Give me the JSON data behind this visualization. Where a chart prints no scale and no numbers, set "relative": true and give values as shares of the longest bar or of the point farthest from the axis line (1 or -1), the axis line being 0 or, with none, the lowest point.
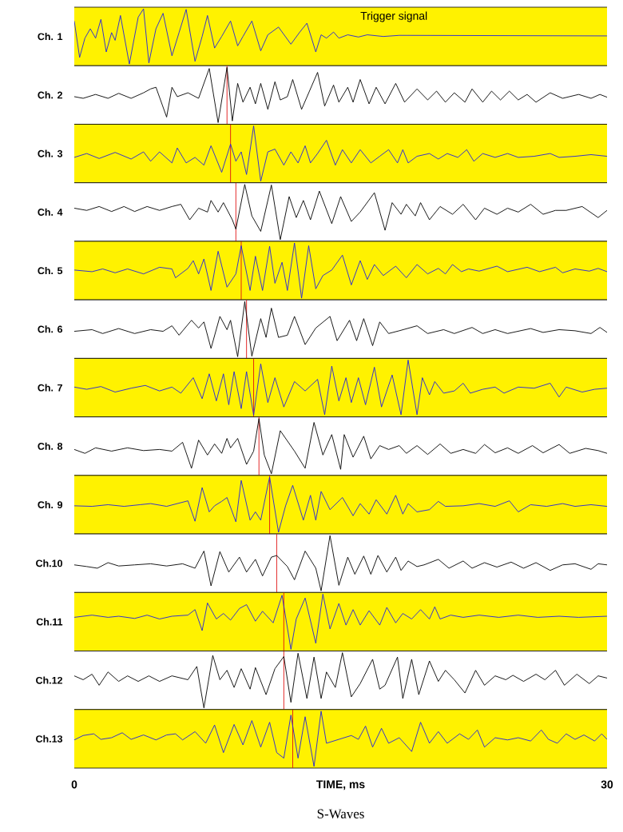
{
  "chart_data": [
    {
      "type": "line",
      "relative": true,
      "ylabel": "Ch. 1",
      "color": "#2020e0",
      "xlim": [
        0,
        30
      ],
      "tick_labels": false,
      "annotations": [
        "Trigger signal"
      ],
      "x": [
        0,
        0.3,
        0.6,
        0.9,
        1.2,
        1.5,
        1.8,
        2.1,
        2.3,
        2.6,
        3.1,
        3.6,
        3.9,
        4.2,
        4.6,
        5.0,
        5.5,
        5.9,
        6.3,
        6.8,
        7.2,
        7.5,
        7.9,
        8.3,
        8.8,
        9.2,
        9.5,
        10.0,
        10.5,
        10.9,
        11.5,
        12.2,
        12.7,
        13.1,
        13.6,
        13.9,
        14.2,
        14.6,
        14.9,
        15.4,
        16.0,
        16.5,
        17.4,
        18.3,
        30
      ],
      "values": [
        0.78,
        0.12,
        0.47,
        0.64,
        0.47,
        0.81,
        0.22,
        0.57,
        0.43,
        0.88,
        0,
        0.85,
        1,
        0.02,
        0.64,
        0.92,
        0.15,
        0.57,
        0.99,
        0.05,
        0.5,
        0.88,
        0.29,
        0.5,
        0.78,
        0.33,
        0.5,
        0.78,
        0.24,
        0.53,
        0.67,
        0.36,
        0.58,
        0.74,
        0.22,
        0.53,
        0.47,
        0.58,
        0.47,
        0.53,
        0.49,
        0.53,
        0.5,
        0.52,
        0.51
      ]
    },
    {
      "type": "line",
      "relative": true,
      "ylabel": "Ch. 2",
      "color": "#000000",
      "xlim": [
        0,
        30
      ],
      "tick_labels": false,
      "ref_lines": [
        {
          "axis": "x",
          "value": 8.6,
          "color": "#e01010"
        }
      ],
      "x": [
        0,
        0.5,
        1.2,
        1.9,
        2.5,
        3.2,
        3.9,
        4.3,
        4.6,
        5.2,
        5.5,
        5.8,
        6.4,
        7.0,
        7.6,
        8.1,
        8.6,
        8.9,
        9.2,
        9.5,
        9.9,
        10.2,
        10.5,
        10.9,
        11.3,
        11.6,
        12.0,
        12.3,
        12.8,
        13.7,
        14.1,
        14.6,
        14.9,
        15.4,
        15.7,
        16.1,
        16.6,
        17.0,
        17.5,
        18.1,
        18.6,
        19.3,
        19.9,
        20.4,
        20.9,
        21.4,
        22.0,
        22.4,
        23.0,
        23.5,
        24.0,
        24.5,
        25.0,
        25.5,
        26.0,
        26.8,
        27.5,
        28.4,
        29.1,
        29.6,
        30
      ],
      "values": [
        0.47,
        0.44,
        0.51,
        0.44,
        0.53,
        0.44,
        0.54,
        0.61,
        0.64,
        0.1,
        0.64,
        0.47,
        0.54,
        0.44,
        0.98,
        0,
        1,
        0.03,
        0.71,
        0.37,
        0.64,
        0.34,
        0.71,
        0.24,
        0.74,
        0.41,
        0.47,
        0.78,
        0.24,
        0.91,
        0.3,
        0.68,
        0.37,
        0.64,
        0.37,
        0.78,
        0.34,
        0.64,
        0.34,
        0.71,
        0.37,
        0.61,
        0.41,
        0.57,
        0.37,
        0.54,
        0.37,
        0.61,
        0.37,
        0.57,
        0.41,
        0.57,
        0.41,
        0.51,
        0.37,
        0.54,
        0.44,
        0.51,
        0.44,
        0.51,
        0.46
      ]
    },
    {
      "type": "line",
      "relative": true,
      "ylabel": "Ch. 3",
      "color": "#2020e0",
      "xlim": [
        0,
        30
      ],
      "tick_labels": false,
      "ref_lines": [
        {
          "axis": "x",
          "value": 8.8,
          "color": "#e01010"
        }
      ],
      "x": [
        0,
        0.7,
        1.4,
        2.3,
        3.2,
        3.9,
        4.3,
        4.8,
        5.5,
        5.8,
        6.3,
        6.8,
        7.3,
        7.7,
        8.3,
        8.8,
        9.1,
        9.4,
        9.7,
        10.1,
        10.5,
        10.9,
        11.3,
        11.8,
        12.2,
        12.6,
        13.0,
        13.3,
        13.7,
        14.2,
        14.7,
        15.1,
        15.6,
        16.1,
        16.7,
        17.2,
        17.7,
        18.2,
        18.5,
        18.8,
        19.3,
        20.0,
        20.5,
        21.0,
        21.6,
        22.1,
        22.5,
        23.0,
        23.7,
        24.4,
        25.0,
        25.9,
        26.8,
        27.3,
        28.2,
        29.1,
        30
      ],
      "values": [
        0.43,
        0.5,
        0.41,
        0.52,
        0.4,
        0.53,
        0.36,
        0.53,
        0.33,
        0.6,
        0.33,
        0.43,
        0.29,
        0.64,
        0.16,
        0.67,
        0.36,
        0.53,
        0.12,
        1,
        0,
        0.53,
        0.58,
        0.29,
        0.53,
        0.33,
        0.64,
        0.33,
        0.5,
        0.74,
        0.29,
        0.57,
        0.33,
        0.57,
        0.33,
        0.45,
        0.57,
        0.33,
        0.57,
        0.33,
        0.45,
        0.5,
        0.4,
        0.5,
        0.43,
        0.57,
        0.36,
        0.5,
        0.43,
        0.5,
        0.43,
        0.45,
        0.5,
        0.43,
        0.45,
        0.48,
        0.45
      ]
    },
    {
      "type": "line",
      "relative": true,
      "ylabel": "Ch. 4",
      "color": "#000000",
      "xlim": [
        0,
        30
      ],
      "tick_labels": false,
      "ref_lines": [
        {
          "axis": "x",
          "value": 9.1,
          "color": "#e01010"
        }
      ],
      "x": [
        0,
        0.7,
        1.4,
        2.1,
        2.8,
        3.4,
        4.1,
        4.8,
        5.5,
        6.0,
        6.5,
        7.0,
        7.5,
        7.7,
        8.1,
        8.4,
        8.9,
        9.1,
        9.6,
        10.0,
        10.5,
        11.1,
        11.6,
        12.1,
        12.5,
        12.9,
        13.3,
        13.8,
        14.5,
        15.0,
        15.6,
        16.1,
        16.9,
        17.5,
        17.9,
        18.4,
        18.7,
        19.2,
        19.5,
        20.0,
        20.6,
        21.3,
        21.9,
        22.6,
        23.1,
        23.8,
        24.4,
        25.0,
        25.7,
        26.4,
        27.1,
        27.7,
        28.6,
        29.5,
        30
      ],
      "values": [
        0.57,
        0.53,
        0.6,
        0.51,
        0.6,
        0.51,
        0.6,
        0.53,
        0.6,
        0.64,
        0.36,
        0.57,
        0.5,
        0.71,
        0.5,
        0.67,
        0.36,
        0.19,
        1,
        0.43,
        0.15,
        0.99,
        0,
        0.78,
        0.4,
        0.71,
        0.36,
        0.88,
        0.29,
        0.78,
        0.33,
        0.5,
        0.85,
        0.17,
        0.67,
        0.46,
        0.64,
        0.43,
        0.67,
        0.36,
        0.6,
        0.46,
        0.64,
        0.36,
        0.57,
        0.46,
        0.57,
        0.5,
        0.64,
        0.46,
        0.53,
        0.53,
        0.6,
        0.4,
        0.53
      ]
    },
    {
      "type": "line",
      "relative": true,
      "ylabel": "Ch. 5",
      "color": "#2020e0",
      "xlim": [
        0,
        30
      ],
      "tick_labels": false,
      "ref_lines": [
        {
          "axis": "x",
          "value": 9.4,
          "color": "#e01010"
        }
      ],
      "x": [
        0,
        1.0,
        1.6,
        2.3,
        3.0,
        3.9,
        4.8,
        5.5,
        5.7,
        6.4,
        6.7,
        7.0,
        7.3,
        7.7,
        8.1,
        8.6,
        9.1,
        9.4,
        9.9,
        10.2,
        10.6,
        11.0,
        11.3,
        11.7,
        12.0,
        12.4,
        12.8,
        13.2,
        13.6,
        14.0,
        14.5,
        15.1,
        15.6,
        16.1,
        16.5,
        16.9,
        17.4,
        18.1,
        18.7,
        19.3,
        19.9,
        20.5,
        20.9,
        21.3,
        21.8,
        22.2,
        22.8,
        23.8,
        24.4,
        25.5,
        26.2,
        27.1,
        27.5,
        28.2,
        29.0,
        29.5,
        30
      ],
      "values": [
        0.51,
        0.48,
        0.53,
        0.46,
        0.53,
        0.44,
        0.56,
        0.53,
        0.37,
        0.54,
        0.68,
        0.44,
        0.71,
        0.14,
        0.85,
        0.2,
        0.44,
        0.95,
        0.14,
        0.76,
        0.14,
        0.94,
        0.27,
        0.65,
        0.14,
        1,
        0,
        0.95,
        0.17,
        0.41,
        0.51,
        0.78,
        0.24,
        0.68,
        0.34,
        0.61,
        0.41,
        0.58,
        0.37,
        0.61,
        0.44,
        0.54,
        0.44,
        0.61,
        0.48,
        0.53,
        0.49,
        0.58,
        0.48,
        0.56,
        0.48,
        0.56,
        0.46,
        0.53,
        0.49,
        0.54,
        0.48
      ]
    },
    {
      "type": "line",
      "relative": true,
      "ylabel": "Ch. 6",
      "color": "#000000",
      "xlim": [
        0,
        30
      ],
      "tick_labels": false,
      "ref_lines": [
        {
          "axis": "x",
          "value": 9.7,
          "color": "#e01010"
        }
      ],
      "x": [
        0,
        1.0,
        1.6,
        2.5,
        3.4,
        4.3,
        5.0,
        5.5,
        5.9,
        6.6,
        7.0,
        7.3,
        7.7,
        8.2,
        8.6,
        8.8,
        9.2,
        9.6,
        10.0,
        10.5,
        10.8,
        11.1,
        11.5,
        12.0,
        12.4,
        13.0,
        13.6,
        14.4,
        14.8,
        15.5,
        15.9,
        16.3,
        16.8,
        17.2,
        17.7,
        18.3,
        19.3,
        19.9,
        20.8,
        21.4,
        22.4,
        23.0,
        23.7,
        24.4,
        25.7,
        26.4,
        27.3,
        28.2,
        29.1,
        29.6,
        30
      ],
      "values": [
        0.46,
        0.49,
        0.42,
        0.51,
        0.42,
        0.49,
        0.46,
        0.56,
        0.39,
        0.66,
        0.52,
        0.63,
        0.15,
        0.73,
        0.49,
        0.66,
        0,
        1,
        0.01,
        0.69,
        0.35,
        0.88,
        0.35,
        0.39,
        0.73,
        0.22,
        0.52,
        0.73,
        0.29,
        0.66,
        0.29,
        0.69,
        0.2,
        0.63,
        0.42,
        0.47,
        0.56,
        0.42,
        0.49,
        0.42,
        0.53,
        0.42,
        0.49,
        0.42,
        0.51,
        0.44,
        0.49,
        0.47,
        0.42,
        0.53,
        0.44
      ]
    },
    {
      "type": "line",
      "relative": true,
      "ylabel": "Ch. 7",
      "color": "#2020e0",
      "xlim": [
        0,
        30
      ],
      "tick_labels": false,
      "ref_lines": [
        {
          "axis": "x",
          "value": 10.1,
          "color": "#e01010"
        }
      ],
      "x": [
        0,
        0.7,
        1.5,
        2.3,
        3.2,
        4.0,
        4.8,
        5.5,
        6.0,
        6.7,
        7.2,
        7.6,
        8.0,
        8.4,
        8.7,
        9.0,
        9.4,
        9.7,
        10.1,
        10.5,
        10.9,
        11.3,
        11.8,
        12.4,
        13.0,
        13.7,
        14.1,
        14.5,
        14.9,
        15.3,
        15.6,
        16.0,
        16.4,
        16.9,
        17.3,
        17.9,
        18.4,
        18.8,
        19.3,
        19.6,
        20.0,
        20.3,
        20.8,
        21.4,
        21.9,
        22.3,
        23.0,
        23.7,
        24.2,
        25.0,
        25.9,
        26.8,
        27.3,
        27.7,
        28.6,
        29.3,
        30
      ],
      "values": [
        0.51,
        0.47,
        0.52,
        0.42,
        0.49,
        0.54,
        0.44,
        0.51,
        0.4,
        0.68,
        0.3,
        0.75,
        0.26,
        0.75,
        0.19,
        0.79,
        0.12,
        0.79,
        0,
        0.93,
        0.23,
        0.68,
        0.15,
        0.61,
        0.44,
        0.65,
        0.01,
        0.89,
        0.26,
        0.68,
        0.23,
        0.68,
        0.19,
        0.87,
        0.15,
        0.73,
        0.01,
        1,
        0.01,
        0.68,
        0.37,
        0.61,
        0.4,
        0.44,
        0.58,
        0.4,
        0.47,
        0.51,
        0.4,
        0.51,
        0.49,
        0.58,
        0.33,
        0.51,
        0.42,
        0.47,
        0.49
      ]
    },
    {
      "type": "line",
      "relative": true,
      "ylabel": "Ch. 8",
      "color": "#000000",
      "xlim": [
        0,
        30
      ],
      "tick_labels": false,
      "ref_lines": [
        {
          "axis": "x",
          "value": 10.4,
          "color": "#e01010"
        }
      ],
      "x": [
        0,
        0.6,
        1.2,
        2.1,
        3.0,
        3.9,
        4.8,
        5.5,
        6.1,
        6.6,
        7.0,
        7.5,
        7.9,
        8.3,
        8.6,
        8.8,
        9.2,
        9.7,
        10.1,
        10.4,
        10.7,
        11.1,
        11.6,
        12.4,
        13.0,
        13.5,
        14.0,
        14.5,
        15.0,
        15.2,
        15.7,
        16.3,
        16.7,
        17.2,
        17.7,
        18.3,
        18.7,
        19.3,
        19.9,
        20.6,
        21.2,
        21.9,
        22.6,
        23.1,
        23.7,
        24.4,
        25.0,
        25.8,
        26.4,
        27.3,
        27.9,
        28.8,
        29.5,
        30
      ],
      "values": [
        0.44,
        0.37,
        0.47,
        0.41,
        0.47,
        0.42,
        0.44,
        0.41,
        0.57,
        0.1,
        0.61,
        0.34,
        0.54,
        0.37,
        0.64,
        0.47,
        0.64,
        0.17,
        0.41,
        1,
        0.34,
        0,
        0.78,
        0.41,
        0.1,
        0.93,
        0.34,
        0.71,
        0.08,
        0.71,
        0.3,
        0.68,
        0.27,
        0.51,
        0.44,
        0.51,
        0.37,
        0.51,
        0.35,
        0.54,
        0.37,
        0.44,
        0.37,
        0.53,
        0.38,
        0.47,
        0.37,
        0.51,
        0.38,
        0.53,
        0.37,
        0.46,
        0.42,
        0.37
      ]
    },
    {
      "type": "line",
      "relative": true,
      "ylabel": "Ch. 9",
      "color": "#2020e0",
      "xlim": [
        0,
        30
      ],
      "tick_labels": false,
      "ref_lines": [
        {
          "axis": "x",
          "value": 11.0,
          "color": "#e01010"
        }
      ],
      "x": [
        0,
        1.0,
        1.9,
        2.8,
        3.7,
        4.3,
        5.2,
        6.4,
        6.8,
        7.2,
        7.6,
        7.9,
        8.3,
        8.6,
        9.1,
        9.4,
        9.9,
        10.2,
        10.5,
        10.9,
        11.0,
        11.5,
        11.9,
        12.3,
        12.9,
        13.3,
        13.6,
        13.9,
        14.4,
        15.1,
        15.7,
        16.1,
        16.6,
        17.0,
        17.6,
        18.1,
        18.5,
        18.8,
        19.3,
        20.0,
        20.5,
        20.9,
        21.9,
        22.8,
        23.7,
        24.5,
        25.0,
        25.7,
        26.6,
        27.5,
        28.2,
        29.1,
        30
      ],
      "values": [
        0.48,
        0.47,
        0.5,
        0.47,
        0.5,
        0.52,
        0.47,
        0.57,
        0.2,
        0.81,
        0.37,
        0.48,
        0.56,
        0.63,
        0.19,
        0.94,
        0.22,
        0.37,
        0.22,
        0.85,
        1,
        0,
        0.48,
        0.85,
        0.22,
        0.67,
        0.22,
        0.74,
        0.41,
        0.63,
        0.3,
        0.52,
        0.33,
        0.59,
        0.33,
        0.67,
        0.33,
        0.52,
        0.37,
        0.41,
        0.56,
        0.47,
        0.48,
        0.52,
        0.47,
        0.57,
        0.37,
        0.5,
        0.47,
        0.52,
        0.47,
        0.5,
        0.47
      ]
    },
    {
      "type": "line",
      "relative": true,
      "ylabel": "Ch.10",
      "color": "#000000",
      "xlim": [
        0,
        30
      ],
      "tick_labels": false,
      "ref_lines": [
        {
          "axis": "x",
          "value": 11.4,
          "color": "#e01010"
        }
      ],
      "x": [
        0,
        0.7,
        1.3,
        1.9,
        2.5,
        3.4,
        4.3,
        5.2,
        6.1,
        6.8,
        7.3,
        7.7,
        8.2,
        8.7,
        9.3,
        9.7,
        10.2,
        10.6,
        11.1,
        11.4,
        12.0,
        12.4,
        13.0,
        13.6,
        13.9,
        14.4,
        14.9,
        15.4,
        15.8,
        16.3,
        16.7,
        17.1,
        17.6,
        18.1,
        18.4,
        18.8,
        19.3,
        19.7,
        20.5,
        21.1,
        21.9,
        22.4,
        23.1,
        23.8,
        24.6,
        25.3,
        26.0,
        26.8,
        27.5,
        28.2,
        29.1,
        29.5,
        30
      ],
      "values": [
        0.47,
        0.44,
        0.41,
        0.51,
        0.45,
        0.47,
        0.49,
        0.45,
        0.49,
        0.41,
        0.72,
        0.09,
        0.71,
        0.34,
        0.61,
        0.34,
        0.57,
        0.27,
        0.61,
        0.64,
        0.44,
        0.2,
        0.72,
        0.41,
        0,
        1,
        0.1,
        0.61,
        0.3,
        0.63,
        0.3,
        0.64,
        0.34,
        0.61,
        0.37,
        0.54,
        0.44,
        0.47,
        0.57,
        0.41,
        0.54,
        0.41,
        0.51,
        0.43,
        0.52,
        0.41,
        0.51,
        0.37,
        0.47,
        0.49,
        0.39,
        0.49,
        0.47
      ]
    },
    {
      "type": "line",
      "relative": true,
      "ylabel": "Ch.11",
      "color": "#2020e0",
      "xlim": [
        0,
        30
      ],
      "tick_labels": false,
      "ref_lines": [
        {
          "axis": "x",
          "value": 11.8,
          "color": "#e01010"
        }
      ],
      "x": [
        0,
        1.0,
        1.9,
        2.5,
        3.4,
        4.1,
        4.8,
        5.5,
        6.4,
        6.8,
        7.2,
        7.5,
        8.0,
        8.4,
        8.8,
        9.3,
        9.7,
        10.2,
        10.6,
        11.2,
        11.7,
        12.2,
        12.5,
        13.0,
        13.6,
        14.0,
        14.4,
        14.9,
        15.3,
        15.7,
        16.1,
        16.6,
        17.2,
        17.6,
        18.1,
        18.5,
        19.0,
        19.5,
        20.0,
        20.3,
        20.6,
        21.2,
        21.9,
        22.8,
        23.9,
        25.0,
        26.1,
        27.3,
        28.4,
        30
      ],
      "values": [
        0.58,
        0.62,
        0.58,
        0.6,
        0.56,
        0.62,
        0.55,
        0.6,
        0.62,
        0.72,
        0.34,
        0.84,
        0.55,
        0.65,
        0.53,
        0.74,
        0.81,
        0.51,
        0.69,
        0.48,
        0.98,
        0,
        0.55,
        0.93,
        0.11,
        1,
        0.37,
        0.83,
        0.44,
        0.72,
        0.44,
        0.7,
        0.44,
        0.76,
        0.48,
        0.65,
        0.55,
        0.72,
        0.55,
        0.77,
        0.55,
        0.62,
        0.58,
        0.62,
        0.58,
        0.62,
        0.58,
        0.6,
        0.58,
        0.6
      ]
    },
    {
      "type": "line",
      "relative": true,
      "ylabel": "Ch.12",
      "color": "#000000",
      "xlim": [
        0,
        30
      ],
      "tick_labels": false,
      "ref_lines": [
        {
          "axis": "x",
          "value": 11.8,
          "color": "#e01010"
        }
      ],
      "x": [
        0,
        0.5,
        1.0,
        1.4,
        1.9,
        2.5,
        3.0,
        3.6,
        4.2,
        4.8,
        5.5,
        6.4,
        6.9,
        7.3,
        7.8,
        8.2,
        8.6,
        9.0,
        9.4,
        9.9,
        10.2,
        10.8,
        11.3,
        11.8,
        12.2,
        12.6,
        13.1,
        13.5,
        13.9,
        14.2,
        14.7,
        15.1,
        15.6,
        16.1,
        16.8,
        17.2,
        17.5,
        18.2,
        18.5,
        19.0,
        19.4,
        20.0,
        20.5,
        20.9,
        21.4,
        22.0,
        22.6,
        23.1,
        23.7,
        24.3,
        24.7,
        25.3,
        26.0,
        26.5,
        27.1,
        27.6,
        28.3,
        29.0,
        29.5,
        30
      ],
      "values": [
        0.58,
        0.51,
        0.61,
        0.41,
        0.65,
        0.48,
        0.58,
        0.48,
        0.58,
        0.48,
        0.58,
        0.51,
        0.75,
        0,
        0.95,
        0.51,
        0.68,
        0.37,
        0.71,
        0.34,
        0.73,
        0.24,
        0.71,
        0.93,
        0.1,
        0.99,
        0.17,
        0.92,
        0.17,
        0.65,
        0.37,
        1,
        0.2,
        0.44,
        0.88,
        0.34,
        0.41,
        0.92,
        0.17,
        0.88,
        0.24,
        0.85,
        0.48,
        0.68,
        0.51,
        0.27,
        0.68,
        0.41,
        0.58,
        0.51,
        0.59,
        0.48,
        0.61,
        0.51,
        0.68,
        0.41,
        0.61,
        0.44,
        0.58,
        0.54
      ]
    },
    {
      "type": "line",
      "relative": true,
      "ylabel": "Ch.13",
      "color": "#2020e0",
      "xlim": [
        0,
        30
      ],
      "xticks": [
        0,
        30
      ],
      "xlabel": "TIME, ms",
      "tick_labels": "x",
      "annotations": [
        "S-Waves"
      ],
      "ref_lines": [
        {
          "axis": "x",
          "value": 12.3,
          "color": "#e01010"
        }
      ],
      "x": [
        0,
        0.5,
        1.1,
        1.5,
        2.1,
        2.7,
        3.2,
        3.9,
        4.6,
        5.2,
        5.7,
        6.1,
        6.8,
        7.4,
        7.9,
        8.4,
        9.0,
        9.5,
        10.0,
        10.5,
        11.0,
        11.4,
        11.8,
        12.2,
        12.6,
        13.0,
        13.5,
        13.9,
        14.2,
        14.9,
        15.6,
        16.0,
        16.4,
        16.8,
        17.3,
        17.7,
        18.3,
        19.0,
        19.5,
        20.0,
        20.5,
        21.0,
        21.7,
        22.2,
        22.7,
        23.1,
        23.7,
        24.4,
        25.0,
        25.7,
        26.3,
        26.7,
        27.2,
        27.7,
        28.2,
        28.7,
        29.3,
        29.7,
        30
      ],
      "values": [
        0.48,
        0.56,
        0.59,
        0.49,
        0.52,
        0.61,
        0.49,
        0.57,
        0.48,
        0.57,
        0.59,
        0.48,
        0.63,
        0.42,
        0.75,
        0.25,
        0.76,
        0.39,
        0.83,
        0.35,
        0.8,
        0.25,
        0.15,
        0.93,
        0.15,
        0.9,
        0,
        1,
        0.42,
        0.49,
        0.56,
        0.49,
        0.73,
        0.35,
        0.69,
        0.42,
        0.52,
        0.27,
        0.8,
        0.42,
        0.63,
        0.42,
        0.59,
        0.49,
        0.66,
        0.35,
        0.52,
        0.48,
        0.52,
        0.46,
        0.66,
        0.49,
        0.42,
        0.59,
        0.49,
        0.57,
        0.46,
        0.59,
        0.49
      ]
    }
  ]
}
